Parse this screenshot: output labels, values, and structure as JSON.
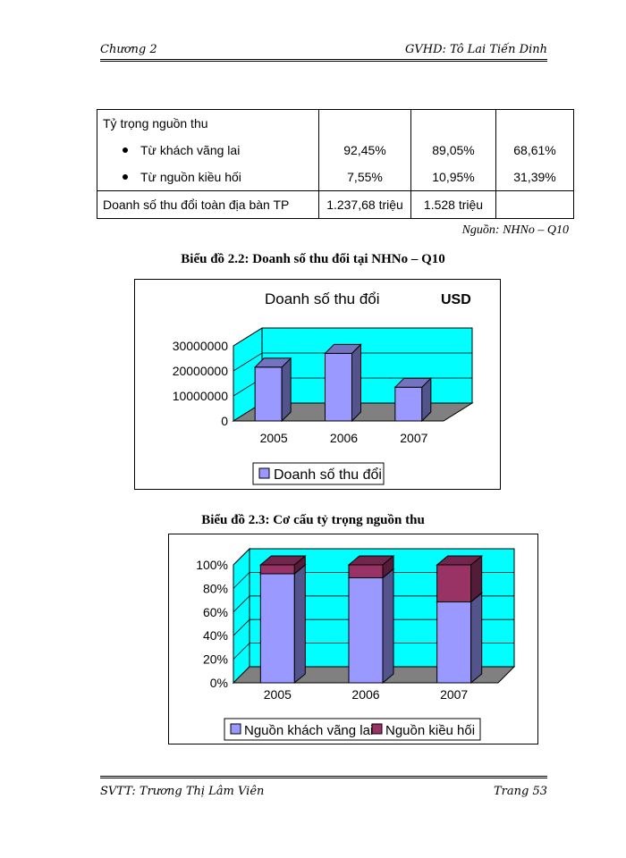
{
  "header": {
    "left": "Chương 2",
    "right": "GVHD: Tô Lai Tiến Dinh"
  },
  "table": {
    "row1_label": "Tỷ trọng nguồn thu",
    "bullet1": "Từ khách vãng lai",
    "bullet2": "Từ nguồn kiều hối",
    "v1": [
      "92,45%",
      "89,05%",
      "68,61%"
    ],
    "v2": [
      "7,55%",
      "10,95%",
      "31,39%"
    ],
    "row2_label": "Doanh số thu đổi toàn địa bàn TP",
    "row2_values": [
      "1.237,68 triệu",
      "1.528 triệu",
      ""
    ]
  },
  "source": "Nguồn: NHNo – Q10",
  "caption1": "Biểu đồ 2.2: Doanh số thu đổi tại NHNo – Q10",
  "caption2": "Biểu đồ 2.3: Cơ cấu tỷ trọng nguồn thu",
  "chart_data": [
    {
      "type": "bar",
      "title": "Doanh số thu đổi",
      "unit_label": "USD",
      "categories": [
        "2005",
        "2006",
        "2007"
      ],
      "series": [
        {
          "name": "Doanh số thu đổi",
          "values": [
            21500000,
            27000000,
            13500000
          ],
          "color": "#9999ff"
        }
      ],
      "ylim": [
        0,
        30000000
      ],
      "yticks": [
        0,
        10000000,
        20000000,
        30000000
      ],
      "ytick_labels": [
        "0",
        "10000000",
        "20000000",
        "30000000"
      ],
      "legend": "bottom",
      "wall_color": "#00ffff",
      "floor_color": "#808080"
    },
    {
      "type": "bar",
      "stacked": true,
      "categories": [
        "2005",
        "2006",
        "2007"
      ],
      "series": [
        {
          "name": "Nguồn khách vãng lai",
          "values": [
            92.45,
            89.05,
            68.61
          ],
          "color": "#9999ff"
        },
        {
          "name": "Nguồn kiều hối",
          "values": [
            7.55,
            10.95,
            31.39
          ],
          "color": "#993366"
        }
      ],
      "ylim": [
        0,
        100
      ],
      "yticks": [
        0,
        20,
        40,
        60,
        80,
        100
      ],
      "ytick_labels": [
        "0%",
        "20%",
        "40%",
        "60%",
        "80%",
        "100%"
      ],
      "legend": "bottom",
      "wall_color": "#00ffff",
      "floor_color": "#808080"
    }
  ],
  "footer": {
    "left": "SVTT: Trương Thị Lâm Viên",
    "right": "Trang 53"
  }
}
